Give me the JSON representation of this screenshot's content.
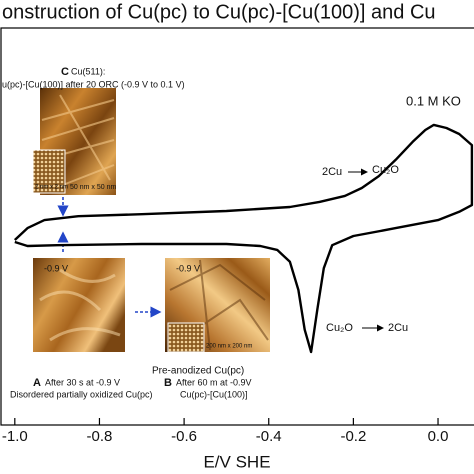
{
  "chart_data": {
    "type": "line",
    "title": "onstruction of Cu(pc) to Cu(pc)-[Cu(100)] and Cu",
    "x_label": "E/V SHE",
    "xlim": [
      -1.035,
      0.085
    ],
    "xticks": [
      {
        "value": -1.0,
        "label": "-1.0"
      },
      -0.8,
      -0.6,
      -0.4,
      -0.2,
      {
        "value": 0,
        "label": "0.0"
      }
    ],
    "ylim": [
      0,
      100
    ],
    "series": [
      {
        "color": "#000000",
        "x": [
          -1.0,
          -0.97,
          -0.93,
          -0.85,
          -0.7,
          -0.5,
          -0.35,
          -0.28,
          -0.22,
          -0.18,
          -0.14,
          -0.1,
          -0.06,
          -0.03,
          -0.01,
          0.02,
          0.05,
          0.08,
          0.08,
          0.05,
          0.0,
          -0.1,
          -0.2,
          -0.25,
          -0.27,
          -0.285,
          -0.3,
          -0.315,
          -0.33,
          -0.35,
          -0.38,
          -0.42,
          -0.5,
          -0.7,
          -0.9,
          -0.97,
          -1.0
        ],
        "values": [
          46.6,
          49.6,
          51.6,
          52.6,
          53.1,
          53.9,
          54.9,
          56.2,
          57.7,
          59.7,
          62.7,
          66.8,
          71.3,
          74.3,
          75.6,
          74.8,
          73.3,
          70.5,
          55.4,
          53.7,
          51.6,
          49.6,
          47.6,
          45.3,
          39.5,
          29.2,
          18.4,
          24.0,
          34.0,
          41.1,
          44.1,
          45.1,
          45.6,
          45.6,
          45.3,
          45.1,
          46.1
        ]
      }
    ],
    "annotations": [
      "0.1 M KO",
      "C",
      "Cu(511):",
      "u(pc)-[Cu(100)] after 20 ORC (-0.9 V to 0.1 V)",
      "50 nm x 50 nm",
      "-0.9 V",
      "-0.9 V",
      "Pre-anodized Cu(pc)",
      "A",
      "After 30 s at -0.9 V",
      "Disordered partially oxidized Cu(pc)",
      "B",
      "After 60 m at -0.9V",
      "Cu(pc)-[Cu(100)]",
      "2Cu",
      "Cu₂O",
      "Cu₂O",
      "2Cu",
      "2 nm x 2 nm",
      "200 nm x 200 nm"
    ]
  }
}
